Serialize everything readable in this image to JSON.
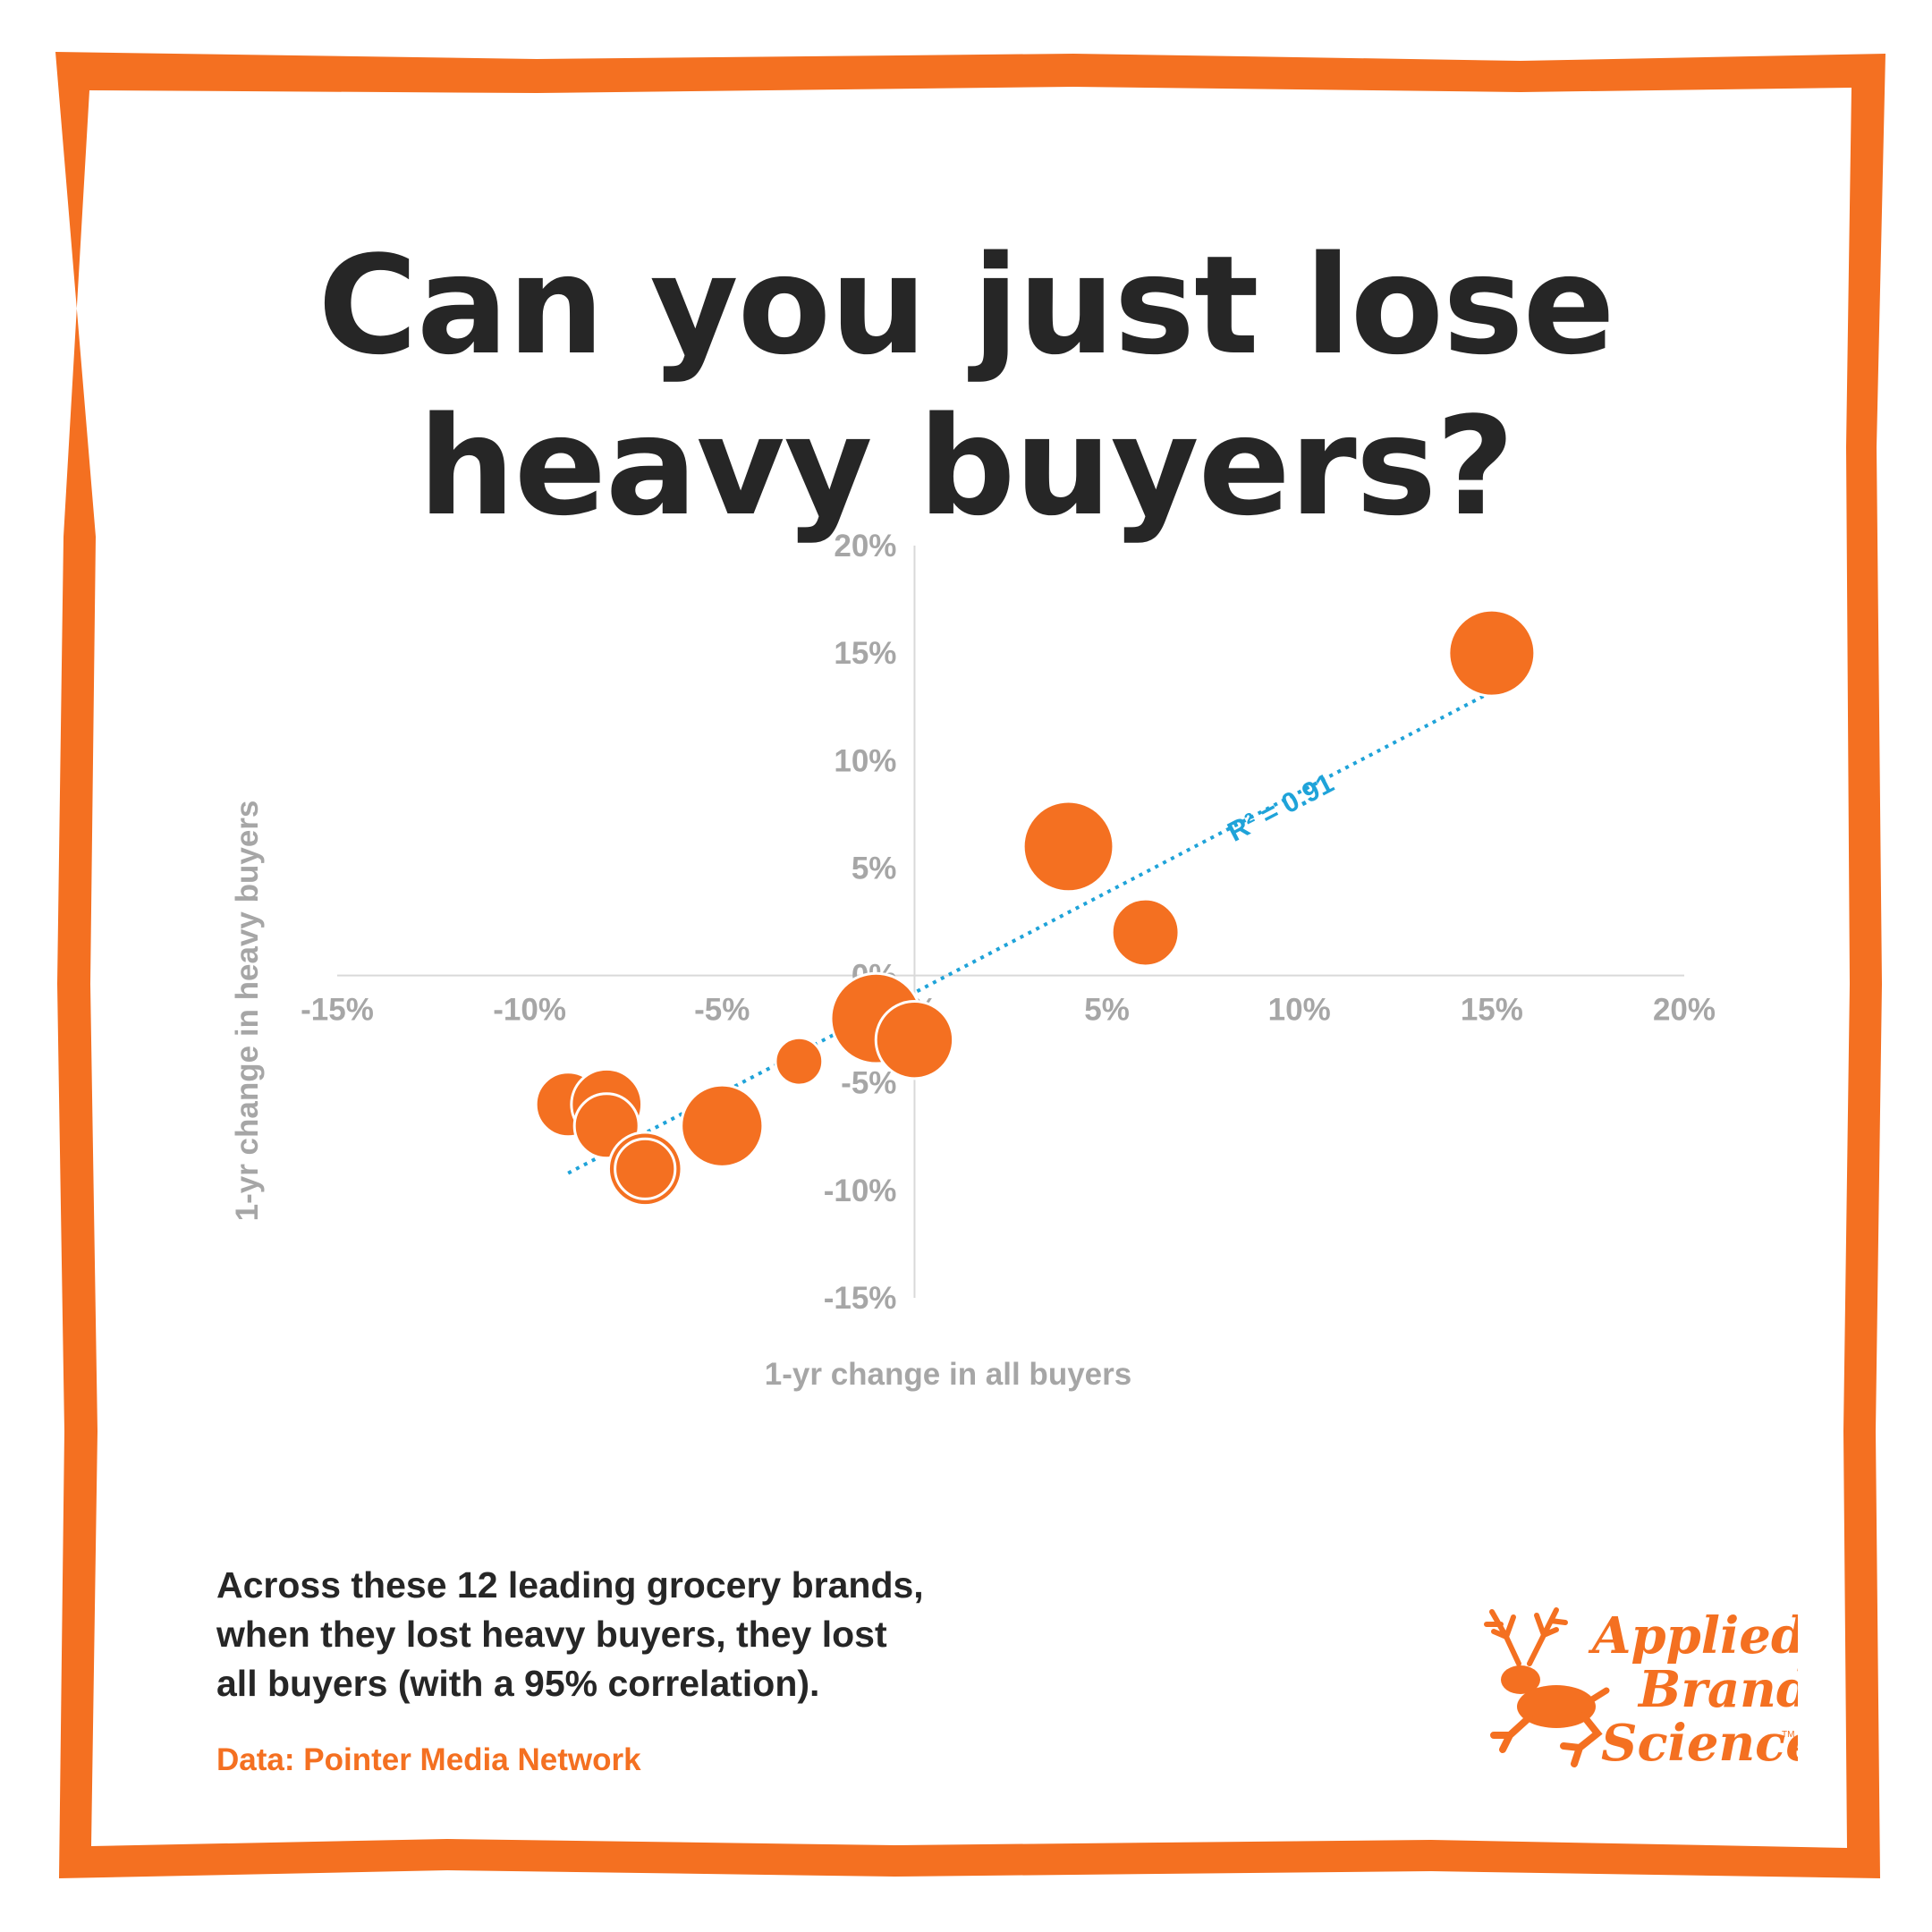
{
  "title_lines": [
    "Can you just lose",
    "heavy buyers?"
  ],
  "caption_lines": [
    "Across these 12 leading grocery brands,",
    "when they lost heavy buyers, they lost",
    "all buyers (with a 95% correlation)."
  ],
  "source": "Data: Pointer Media Network",
  "logo": {
    "words": [
      "Applied",
      "Brand",
      "Science"
    ],
    "tm": "TM"
  },
  "colors": {
    "frame": "#f47021",
    "bubble": "#f47021",
    "trendline": "#1fa3d9",
    "axis_text": "#a6a6a6",
    "title": "#262626"
  },
  "chart_data": {
    "type": "scatter",
    "xlabel": "1-yr change in all buyers",
    "ylabel": "1-yr change in heavy buyers",
    "xlim": [
      -15,
      20
    ],
    "ylim": [
      -15,
      20
    ],
    "x_ticks": [
      -15,
      -10,
      -5,
      0,
      5,
      10,
      15,
      20
    ],
    "y_ticks": [
      20,
      15,
      10,
      5,
      0,
      -5,
      -10,
      -15
    ],
    "x_tick_labels": [
      "-15%",
      "-10%",
      "-5%",
      "0%",
      "5%",
      "10%",
      "15%",
      "20%"
    ],
    "y_tick_labels": [
      "20%",
      "15%",
      "10%",
      "5%",
      "0%",
      "-5%",
      "-10%",
      "-15%"
    ],
    "points": [
      {
        "x": 15,
        "y": 15,
        "size": 1.0
      },
      {
        "x": 4,
        "y": 6,
        "size": 1.05
      },
      {
        "x": 6,
        "y": 2,
        "size": 0.78
      },
      {
        "x": -1,
        "y": -2,
        "size": 1.05
      },
      {
        "x": 0,
        "y": -3,
        "size": 0.9
      },
      {
        "x": -3,
        "y": -4,
        "size": 0.55
      },
      {
        "x": -9,
        "y": -6,
        "size": 0.75
      },
      {
        "x": -8,
        "y": -6,
        "size": 0.82
      },
      {
        "x": -8,
        "y": -7,
        "size": 0.75
      },
      {
        "x": -5,
        "y": -7,
        "size": 0.95
      },
      {
        "x": -7,
        "y": -9,
        "size": 0.85
      },
      {
        "x": -7,
        "y": -9,
        "size": 0.7
      }
    ],
    "trendline": {
      "style": "dotted",
      "x_start": -9,
      "y_start": -9.2,
      "x_end": 15,
      "y_end": 13.2
    },
    "annotation": "R² = 0.91",
    "grid": false,
    "legend": "none"
  }
}
